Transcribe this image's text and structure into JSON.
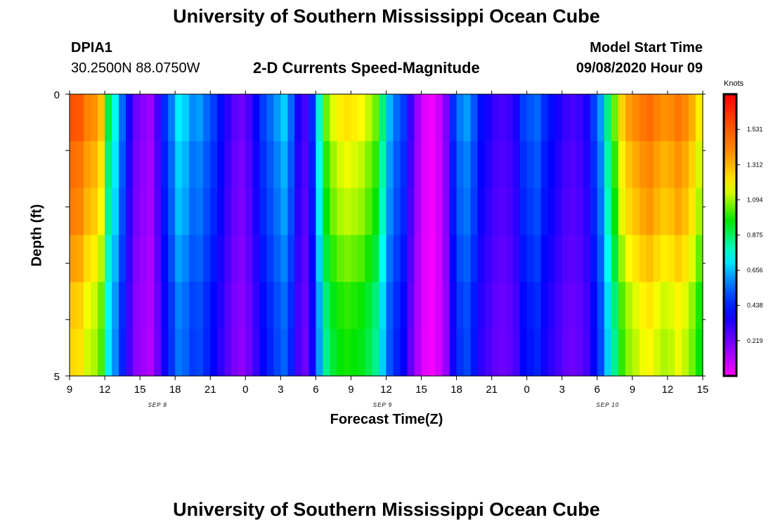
{
  "header": {
    "title": "University of Southern Mississippi Ocean Cube",
    "station": "DPIA1",
    "location": "30.2500N 88.0750W",
    "subtitle": "2-D Currents Speed-Magnitude",
    "model_label": "Model Start Time",
    "model_time": "09/08/2020 Hour 09"
  },
  "footer": {
    "title": "University of Southern Mississippi Ocean Cube"
  },
  "chart_data": {
    "type": "heatmap",
    "title": "2-D Currents Speed-Magnitude",
    "xlabel": "Forecast Time(Z)",
    "ylabel": "Depth (ft)",
    "x_tick_labels": [
      "9",
      "12",
      "15",
      "18",
      "21",
      "0",
      "3",
      "6",
      "9",
      "12",
      "15",
      "18",
      "21",
      "0",
      "3",
      "6",
      "9",
      "12",
      "15"
    ],
    "day_labels": [
      "SEP 8",
      "SEP 9",
      "SEP 10"
    ],
    "y_tick_labels": [
      "0",
      "5"
    ],
    "ylim": [
      0,
      5
    ],
    "x_hours_range": [
      0,
      54
    ],
    "colorbar": {
      "unit": "Knots",
      "ticks": [
        "1.531",
        "1.312",
        "1.094",
        "0.875",
        "0.656",
        "0.438",
        "0.219"
      ],
      "range": [
        0,
        1.75
      ]
    },
    "depth_rows": [
      0,
      1,
      2,
      3,
      4,
      5
    ],
    "profile": [
      1.55,
      1.53,
      1.42,
      1.38,
      1.28,
      0.9,
      0.75,
      0.55,
      0.35,
      0.22,
      0.18,
      0.15,
      0.28,
      0.45,
      0.58,
      0.72,
      0.68,
      0.6,
      0.62,
      0.55,
      0.48,
      0.4,
      0.32,
      0.25,
      0.22,
      0.28,
      0.38,
      0.48,
      0.55,
      0.62,
      0.68,
      0.55,
      0.35,
      0.28,
      0.45,
      0.78,
      1.05,
      1.15,
      1.2,
      1.22,
      1.2,
      1.18,
      1.12,
      1.05,
      0.85,
      0.65,
      0.55,
      0.48,
      0.3,
      0.15,
      0.05,
      0.02,
      0.08,
      0.2,
      0.45,
      0.58,
      0.62,
      0.52,
      0.4,
      0.35,
      0.3,
      0.28,
      0.3,
      0.35,
      0.48,
      0.52,
      0.55,
      0.45,
      0.4,
      0.35,
      0.3,
      0.28,
      0.3,
      0.35,
      0.48,
      0.62,
      0.85,
      1.05,
      1.25,
      1.35,
      1.4,
      1.45,
      1.48,
      1.42,
      1.38,
      1.4,
      1.45,
      1.4,
      1.32,
      1.2
    ],
    "depth_factor": [
      1.0,
      0.95,
      0.92,
      0.87,
      0.82,
      0.8
    ]
  }
}
